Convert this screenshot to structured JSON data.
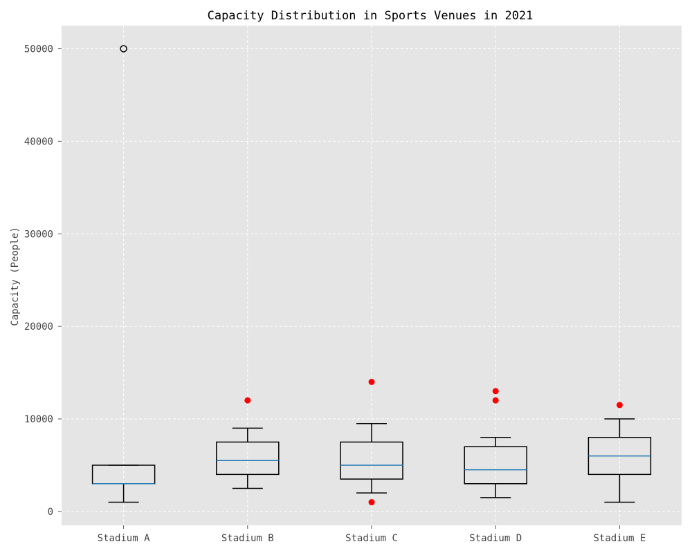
{
  "chart_data": {
    "type": "box",
    "title": "Capacity Distribution in Sports Venues in 2021",
    "xlabel": "",
    "ylabel": "Capacity (People)",
    "ylim": [
      -1500,
      52500
    ],
    "yticks": [
      0,
      10000,
      20000,
      30000,
      40000,
      50000
    ],
    "grid": true,
    "categories": [
      "Stadium A",
      "Stadium B",
      "Stadium C",
      "Stadium D",
      "Stadium E"
    ],
    "boxes": [
      {
        "category": "Stadium A",
        "whisker_low": 1000,
        "q1": 3000,
        "median": 3000,
        "q3": 5000,
        "whisker_high": 5000,
        "outliers": [
          50000
        ],
        "outlier_style": "open"
      },
      {
        "category": "Stadium B",
        "whisker_low": 2500,
        "q1": 4000,
        "median": 5500,
        "q3": 7500,
        "whisker_high": 9000,
        "outliers": [
          12000
        ],
        "outlier_style": "filled"
      },
      {
        "category": "Stadium C",
        "whisker_low": 2000,
        "q1": 3500,
        "median": 5000,
        "q3": 7500,
        "whisker_high": 9500,
        "outliers": [
          1000,
          14000
        ],
        "outlier_style": "filled"
      },
      {
        "category": "Stadium D",
        "whisker_low": 1500,
        "q1": 3000,
        "median": 4500,
        "q3": 7000,
        "whisker_high": 8000,
        "outliers": [
          12000,
          13000
        ],
        "outlier_style": "filled"
      },
      {
        "category": "Stadium E",
        "whisker_low": 1000,
        "q1": 4000,
        "median": 6000,
        "q3": 8000,
        "whisker_high": 10000,
        "outliers": [
          11500
        ],
        "outlier_style": "filled"
      }
    ],
    "colors": {
      "plot_background": "#e5e5e5",
      "median_line": "#1f77b4",
      "outlier_fill": "#ff0000",
      "box_edge": "#000000"
    }
  }
}
